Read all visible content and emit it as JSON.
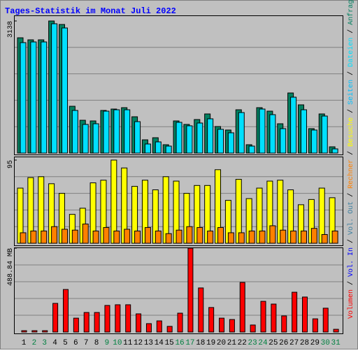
{
  "chart_data": [
    {
      "type": "bar",
      "title": "Tages-Statistik im Monat Juli 2022",
      "ylim": [
        0,
        3138
      ],
      "yticks": [
        3138
      ],
      "grid": true,
      "series": [
        {
          "name": "Anfragen",
          "color": "#008060",
          "values": [
            2739,
            2690,
            2690,
            3138,
            3055,
            1112,
            780,
            764,
            1013,
            1046,
            1079,
            863,
            315,
            365,
            199,
            764,
            681,
            797,
            930,
            631,
            548,
            1029,
            199,
            1079,
            996,
            697,
            1428,
            1146,
            581,
            930,
            149
          ]
        },
        {
          "name": "Dateien",
          "color": "#00e0ff",
          "values": [
            2624,
            2640,
            2640,
            3072,
            2972,
            1013,
            681,
            697,
            996,
            1029,
            1029,
            747,
            216,
            266,
            166,
            731,
            648,
            714,
            814,
            565,
            482,
            963,
            166,
            1046,
            913,
            581,
            1328,
            1029,
            548,
            880,
            100
          ]
        }
      ],
      "legend_only": [
        {
          "name": "Seiten",
          "color": "#00c0ff"
        }
      ]
    },
    {
      "type": "bar",
      "ylim": [
        0,
        95
      ],
      "yticks": [
        95
      ],
      "grid": true,
      "series": [
        {
          "name": "Besuche",
          "color": "#ffff00",
          "values": [
            63,
            75,
            76,
            68,
            57,
            33,
            40,
            69,
            72,
            95,
            86,
            65,
            72,
            61,
            76,
            71,
            57,
            66,
            66,
            84,
            49,
            73,
            51,
            63,
            71,
            72,
            61,
            44,
            50,
            63,
            52
          ]
        },
        {
          "name": "Rechner",
          "color": "#ff8000",
          "values": [
            12,
            14,
            14,
            19,
            16,
            15,
            22,
            14,
            18,
            14,
            16,
            14,
            18,
            14,
            11,
            15,
            19,
            18,
            14,
            18,
            12,
            12,
            14,
            14,
            20,
            15,
            14,
            14,
            17,
            10,
            14
          ]
        }
      ]
    },
    {
      "type": "bar",
      "ylim": [
        0,
        488.84
      ],
      "yticks": [
        {
          "value": 488.84,
          "label": "488.84 MB"
        }
      ],
      "grid": true,
      "categories": [
        "1",
        "2",
        "3",
        "4",
        "5",
        "6",
        "7",
        "8",
        "9",
        "10",
        "11",
        "12",
        "13",
        "14",
        "15",
        "16",
        "17",
        "18",
        "19",
        "20",
        "21",
        "22",
        "23",
        "24",
        "25",
        "26",
        "27",
        "28",
        "29",
        "30",
        "31"
      ],
      "category_label_colors": [
        "#000000",
        "#008040",
        "#008040",
        "#000000",
        "#000000",
        "#000000",
        "#000000",
        "#000000",
        "#008040",
        "#008040",
        "#000000",
        "#000000",
        "#000000",
        "#000000",
        "#000000",
        "#008040",
        "#008040",
        "#000000",
        "#000000",
        "#000000",
        "#000000",
        "#000000",
        "#008040",
        "#008040",
        "#000000",
        "#000000",
        "#000000",
        "#000000",
        "#000000",
        "#008040",
        "#008040"
      ],
      "series": [
        {
          "name": "Volumen",
          "color": "#ff0000",
          "values": [
            8,
            8,
            8,
            167,
            248,
            81,
            114,
            114,
            155,
            159,
            159,
            106,
            49,
            65,
            33,
            110,
            488.84,
            257,
            143,
            81,
            73,
            289,
            41,
            179,
            163,
            94,
            232,
            204,
            77,
            139,
            16
          ]
        }
      ],
      "legend_only": [
        {
          "name": "Vol. In",
          "color": "#0000ff"
        },
        {
          "name": "Vol. Out",
          "color": "#4080a0"
        }
      ]
    }
  ]
}
